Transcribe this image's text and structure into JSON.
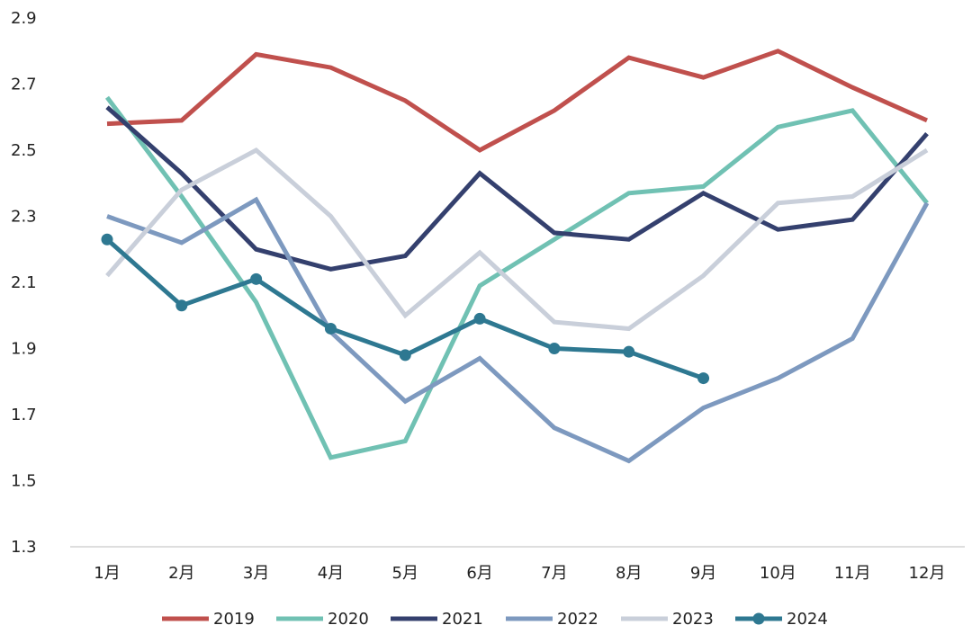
{
  "chart_data": {
    "type": "line",
    "title": "",
    "xlabel": "",
    "ylabel": "",
    "categories": [
      "1月",
      "2月",
      "3月",
      "4月",
      "5月",
      "6月",
      "7月",
      "8月",
      "9月",
      "10月",
      "11月",
      "12月"
    ],
    "ylim": [
      1.3,
      2.9
    ],
    "yticks": [
      "2.9",
      "2.7",
      "2.5",
      "2.3",
      "2.1",
      "1.9",
      "1.7",
      "1.5",
      "1.3"
    ],
    "grid": false,
    "legend_position": "bottom",
    "series": [
      {
        "name": "2019",
        "color": "#c0504d",
        "marker": false,
        "values": [
          2.58,
          2.59,
          2.79,
          2.75,
          2.65,
          2.5,
          2.62,
          2.78,
          2.72,
          2.8,
          2.69,
          2.59
        ]
      },
      {
        "name": "2020",
        "color": "#70c1b3",
        "marker": false,
        "values": [
          2.66,
          2.36,
          2.04,
          1.57,
          1.62,
          2.09,
          2.23,
          2.37,
          2.39,
          2.57,
          2.62,
          2.34
        ]
      },
      {
        "name": "2021",
        "color": "#34406e",
        "marker": false,
        "values": [
          2.63,
          2.43,
          2.2,
          2.14,
          2.18,
          2.43,
          2.25,
          2.23,
          2.37,
          2.26,
          2.29,
          2.55
        ]
      },
      {
        "name": "2022",
        "color": "#7d99bf",
        "marker": false,
        "values": [
          2.3,
          2.22,
          2.35,
          1.95,
          1.74,
          1.87,
          1.66,
          1.56,
          1.72,
          1.81,
          1.93,
          2.34
        ]
      },
      {
        "name": "2023",
        "color": "#c9cfda",
        "marker": false,
        "values": [
          2.12,
          2.38,
          2.5,
          2.3,
          2.0,
          2.19,
          1.98,
          1.96,
          2.12,
          2.34,
          2.36,
          2.5
        ]
      },
      {
        "name": "2024",
        "color": "#2e7891",
        "marker": true,
        "values": [
          2.23,
          2.03,
          2.11,
          1.96,
          1.88,
          1.99,
          1.9,
          1.89,
          1.81,
          null,
          null,
          null
        ]
      }
    ]
  }
}
